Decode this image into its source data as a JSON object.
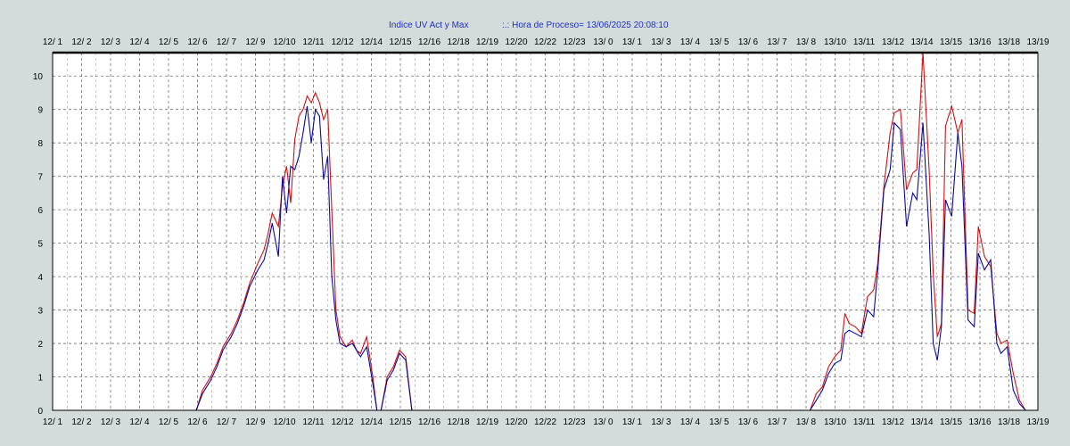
{
  "chart_data": {
    "type": "line",
    "title": "Indice UV Act y Max",
    "subtitle": ":.: Hora de Proceso= 13/06/2025 20:08:10",
    "x_tick_labels": [
      "12/ 1",
      "12/ 2",
      "12/ 3",
      "12/ 4",
      "12/ 5",
      "12/ 6",
      "12/ 7",
      "12/ 9",
      "12/10",
      "12/11",
      "12/12",
      "12/14",
      "12/15",
      "12/16",
      "12/18",
      "12/19",
      "12/20",
      "12/22",
      "12/23",
      "13/ 0",
      "13/ 1",
      "13/ 3",
      "13/ 4",
      "13/ 5",
      "13/ 6",
      "13/ 7",
      "13/ 8",
      "13/10",
      "13/11",
      "13/12",
      "13/14",
      "13/15",
      "13/16",
      "13/18",
      "13/19"
    ],
    "y_tick_labels": [
      "0",
      "1",
      "2",
      "3",
      "4",
      "5",
      "6",
      "7",
      "8",
      "9",
      "10"
    ],
    "ylim": [
      0,
      10.7
    ],
    "grid": true,
    "colors": {
      "actual": "#0a0aa0",
      "max": "#d41010",
      "title": "#1f2fd0",
      "background": "#d3dcda"
    },
    "series": [
      {
        "key": "max",
        "x": [
          7.0,
          7.3,
          7.7,
          8.0,
          8.3,
          8.7,
          9.0,
          9.3,
          9.6,
          10.0,
          10.3,
          10.5,
          10.7,
          11.0,
          11.2,
          11.4,
          11.6,
          11.8,
          12.0,
          12.2,
          12.4,
          12.6,
          12.8,
          13.0,
          13.2,
          13.4,
          13.6,
          13.8,
          14.0,
          14.3,
          14.6,
          14.8,
          15.0,
          15.3,
          15.6,
          15.8,
          16.0,
          16.3,
          16.6,
          16.9,
          17.2,
          17.5
        ],
        "values": [
          0,
          0.6,
          1.0,
          1.4,
          1.9,
          2.3,
          2.7,
          3.2,
          3.8,
          4.4,
          4.8,
          5.3,
          5.9,
          5.5,
          6.7,
          7.3,
          6.2,
          8.1,
          8.8,
          9.0,
          9.4,
          9.2,
          9.5,
          9.2,
          8.7,
          9.0,
          6.0,
          3.0,
          2.2,
          1.9,
          2.1,
          1.8,
          1.7,
          2.2,
          1.0,
          0,
          0,
          1.0,
          1.3,
          1.8,
          1.6,
          0
        ],
        "note": "day 12"
      },
      {
        "key": "max_d2",
        "x": [
          36.9,
          37.2,
          37.5,
          37.8,
          38.1,
          38.4,
          38.6,
          38.8,
          39.1,
          39.4,
          39.7,
          40.0,
          40.2,
          40.5,
          40.8,
          41.0,
          41.3,
          41.6,
          41.9,
          42.1,
          42.4,
          42.7,
          42.9,
          43.1,
          43.3,
          43.5,
          43.8,
          44.1,
          44.3,
          44.6,
          44.9,
          45.1,
          45.4,
          45.7,
          46.0,
          46.2,
          46.5,
          46.8,
          47.1,
          47.4,
          47.6
        ],
        "values": [
          0,
          0.5,
          0.7,
          1.3,
          1.6,
          1.8,
          2.9,
          2.6,
          2.5,
          2.3,
          3.4,
          3.6,
          4.4,
          6.7,
          8.3,
          8.9,
          9.0,
          6.6,
          7.1,
          7.2,
          10.7,
          7.2,
          4.1,
          2.2,
          2.6,
          8.5,
          9.1,
          8.3,
          8.7,
          3.0,
          2.9,
          5.5,
          4.6,
          4.3,
          2.3,
          2.0,
          2.1,
          1.1,
          0.3,
          0,
          0
        ],
        "note": "day 13"
      },
      {
        "key": "actual",
        "x": [
          7.0,
          7.3,
          7.7,
          8.0,
          8.3,
          8.7,
          9.0,
          9.3,
          9.6,
          10.0,
          10.3,
          10.5,
          10.7,
          11.0,
          11.2,
          11.4,
          11.6,
          11.8,
          12.0,
          12.2,
          12.4,
          12.6,
          12.8,
          13.0,
          13.2,
          13.4,
          13.6,
          13.8,
          14.0,
          14.3,
          14.6,
          14.8,
          15.0,
          15.3,
          15.6,
          15.8,
          16.0,
          16.3,
          16.6,
          16.9,
          17.2,
          17.5
        ],
        "values": [
          0,
          0.5,
          0.9,
          1.3,
          1.8,
          2.2,
          2.6,
          3.1,
          3.7,
          4.2,
          4.5,
          5.0,
          5.6,
          4.6,
          7.0,
          5.9,
          7.3,
          7.2,
          7.6,
          8.3,
          9.1,
          8.0,
          9.0,
          8.8,
          6.9,
          7.6,
          4.0,
          2.7,
          2.0,
          1.9,
          2.0,
          1.8,
          1.6,
          1.9,
          0.8,
          0,
          0,
          0.9,
          1.2,
          1.7,
          1.5,
          0
        ],
        "note": "day 12"
      },
      {
        "key": "actual_d2",
        "x": [
          36.9,
          37.2,
          37.5,
          37.8,
          38.1,
          38.4,
          38.6,
          38.8,
          39.1,
          39.4,
          39.7,
          40.0,
          40.2,
          40.5,
          40.8,
          41.0,
          41.3,
          41.6,
          41.9,
          42.1,
          42.4,
          42.7,
          42.9,
          43.1,
          43.3,
          43.5,
          43.8,
          44.1,
          44.3,
          44.6,
          44.9,
          45.1,
          45.4,
          45.7,
          46.0,
          46.2,
          46.5,
          46.8,
          47.1,
          47.4,
          47.6
        ],
        "values": [
          0,
          0.3,
          0.6,
          1.1,
          1.4,
          1.5,
          2.3,
          2.4,
          2.3,
          2.2,
          3.0,
          2.8,
          4.2,
          6.6,
          7.2,
          8.6,
          8.4,
          5.5,
          6.5,
          6.3,
          8.6,
          5.3,
          2.0,
          1.5,
          2.5,
          6.3,
          5.8,
          8.3,
          7.3,
          2.7,
          2.5,
          4.7,
          4.2,
          4.5,
          2.0,
          1.7,
          1.9,
          0.6,
          0.2,
          0,
          0
        ],
        "note": "day 13"
      }
    ]
  }
}
